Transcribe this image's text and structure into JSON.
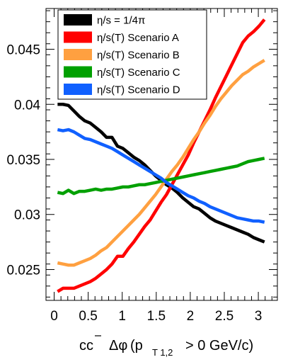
{
  "chart_data": {
    "type": "line",
    "xlabel": "cc̄ Δφ (p_T 1,2 > 0 GeV/c)",
    "xlabel_parts": {
      "pair": "cc",
      "delta_phi": "Δφ",
      "open": "(p",
      "sub": "T 1,2",
      "cut": "> 0 GeV/c)"
    },
    "ylabel": "",
    "xlim": [
      -0.12,
      3.28
    ],
    "ylim": [
      0.0222,
      0.0487
    ],
    "xticks": [
      0,
      0.5,
      1,
      1.5,
      2,
      2.5,
      3
    ],
    "xtick_labels": [
      "0",
      "0.5",
      "1",
      "1.5",
      "2",
      "2.5",
      "3"
    ],
    "yticks": [
      0.025,
      0.03,
      0.035,
      0.04,
      0.045
    ],
    "ytick_labels": [
      "0.025",
      "0.03",
      "0.035",
      "0.04",
      "0.045"
    ],
    "grid": false,
    "legend_position": "top-left",
    "x": [
      0.05,
      0.13,
      0.21,
      0.29,
      0.37,
      0.45,
      0.53,
      0.61,
      0.69,
      0.77,
      0.85,
      0.93,
      1.01,
      1.09,
      1.17,
      1.25,
      1.33,
      1.41,
      1.49,
      1.57,
      1.65,
      1.73,
      1.81,
      1.89,
      1.97,
      2.05,
      2.13,
      2.21,
      2.29,
      2.37,
      2.45,
      2.53,
      2.61,
      2.69,
      2.77,
      2.85,
      2.93,
      3.01,
      3.09
    ],
    "series": [
      {
        "name": "η/s = 1/4π",
        "color": "#000000",
        "values": [
          0.04,
          0.04,
          0.0399,
          0.0394,
          0.0389,
          0.0385,
          0.0383,
          0.0379,
          0.0375,
          0.037,
          0.037,
          0.0362,
          0.036,
          0.0356,
          0.0352,
          0.0349,
          0.0345,
          0.034,
          0.0335,
          0.0331,
          0.0327,
          0.0324,
          0.032,
          0.0315,
          0.0311,
          0.0307,
          0.0305,
          0.0301,
          0.0297,
          0.0294,
          0.0292,
          0.029,
          0.0288,
          0.0286,
          0.0284,
          0.0282,
          0.0279,
          0.0277,
          0.0275
        ]
      },
      {
        "name": "η/s(T) Scenario A",
        "color": "#ff0000",
        "values": [
          0.023,
          0.0233,
          0.0233,
          0.0233,
          0.0235,
          0.0237,
          0.0239,
          0.0242,
          0.0246,
          0.025,
          0.0255,
          0.0262,
          0.0262,
          0.0269,
          0.0275,
          0.0282,
          0.0289,
          0.0295,
          0.0303,
          0.0311,
          0.0318,
          0.0327,
          0.0336,
          0.0345,
          0.0354,
          0.0365,
          0.0375,
          0.0385,
          0.0395,
          0.0406,
          0.0416,
          0.0426,
          0.0436,
          0.0446,
          0.0456,
          0.0462,
          0.0466,
          0.0471,
          0.0477
        ]
      },
      {
        "name": "η/s(T) Scenario B",
        "color": "#ffa040",
        "values": [
          0.0256,
          0.0255,
          0.0254,
          0.0254,
          0.0256,
          0.0258,
          0.026,
          0.0263,
          0.0267,
          0.027,
          0.0275,
          0.028,
          0.0285,
          0.029,
          0.0295,
          0.03,
          0.0306,
          0.0312,
          0.0318,
          0.0325,
          0.0332,
          0.0339,
          0.0345,
          0.0352,
          0.036,
          0.0368,
          0.0375,
          0.0383,
          0.039,
          0.0398,
          0.0405,
          0.0411,
          0.0417,
          0.0422,
          0.0427,
          0.043,
          0.0434,
          0.0437,
          0.044
        ]
      },
      {
        "name": "η/s(T) Scenario C",
        "color": "#00a000",
        "values": [
          0.032,
          0.0319,
          0.0322,
          0.0319,
          0.0321,
          0.0321,
          0.0322,
          0.0323,
          0.0322,
          0.0323,
          0.0323,
          0.0324,
          0.0325,
          0.0325,
          0.0326,
          0.0327,
          0.0327,
          0.0328,
          0.0329,
          0.033,
          0.0331,
          0.0332,
          0.0333,
          0.0334,
          0.0335,
          0.0336,
          0.0337,
          0.0338,
          0.0339,
          0.034,
          0.0341,
          0.0342,
          0.0343,
          0.0344,
          0.0346,
          0.0348,
          0.0349,
          0.035,
          0.0351
        ]
      },
      {
        "name": "η/s(T) Scenario D",
        "color": "#1060ff",
        "values": [
          0.0377,
          0.0376,
          0.0377,
          0.0375,
          0.0372,
          0.0369,
          0.0368,
          0.0366,
          0.0364,
          0.0362,
          0.036,
          0.0357,
          0.0354,
          0.0351,
          0.0348,
          0.0345,
          0.0342,
          0.0339,
          0.0336,
          0.0333,
          0.0329,
          0.0326,
          0.0323,
          0.032,
          0.0317,
          0.0315,
          0.0312,
          0.031,
          0.0307,
          0.0305,
          0.0303,
          0.0301,
          0.0299,
          0.0297,
          0.0296,
          0.0295,
          0.0294,
          0.0294,
          0.0293
        ]
      }
    ]
  }
}
